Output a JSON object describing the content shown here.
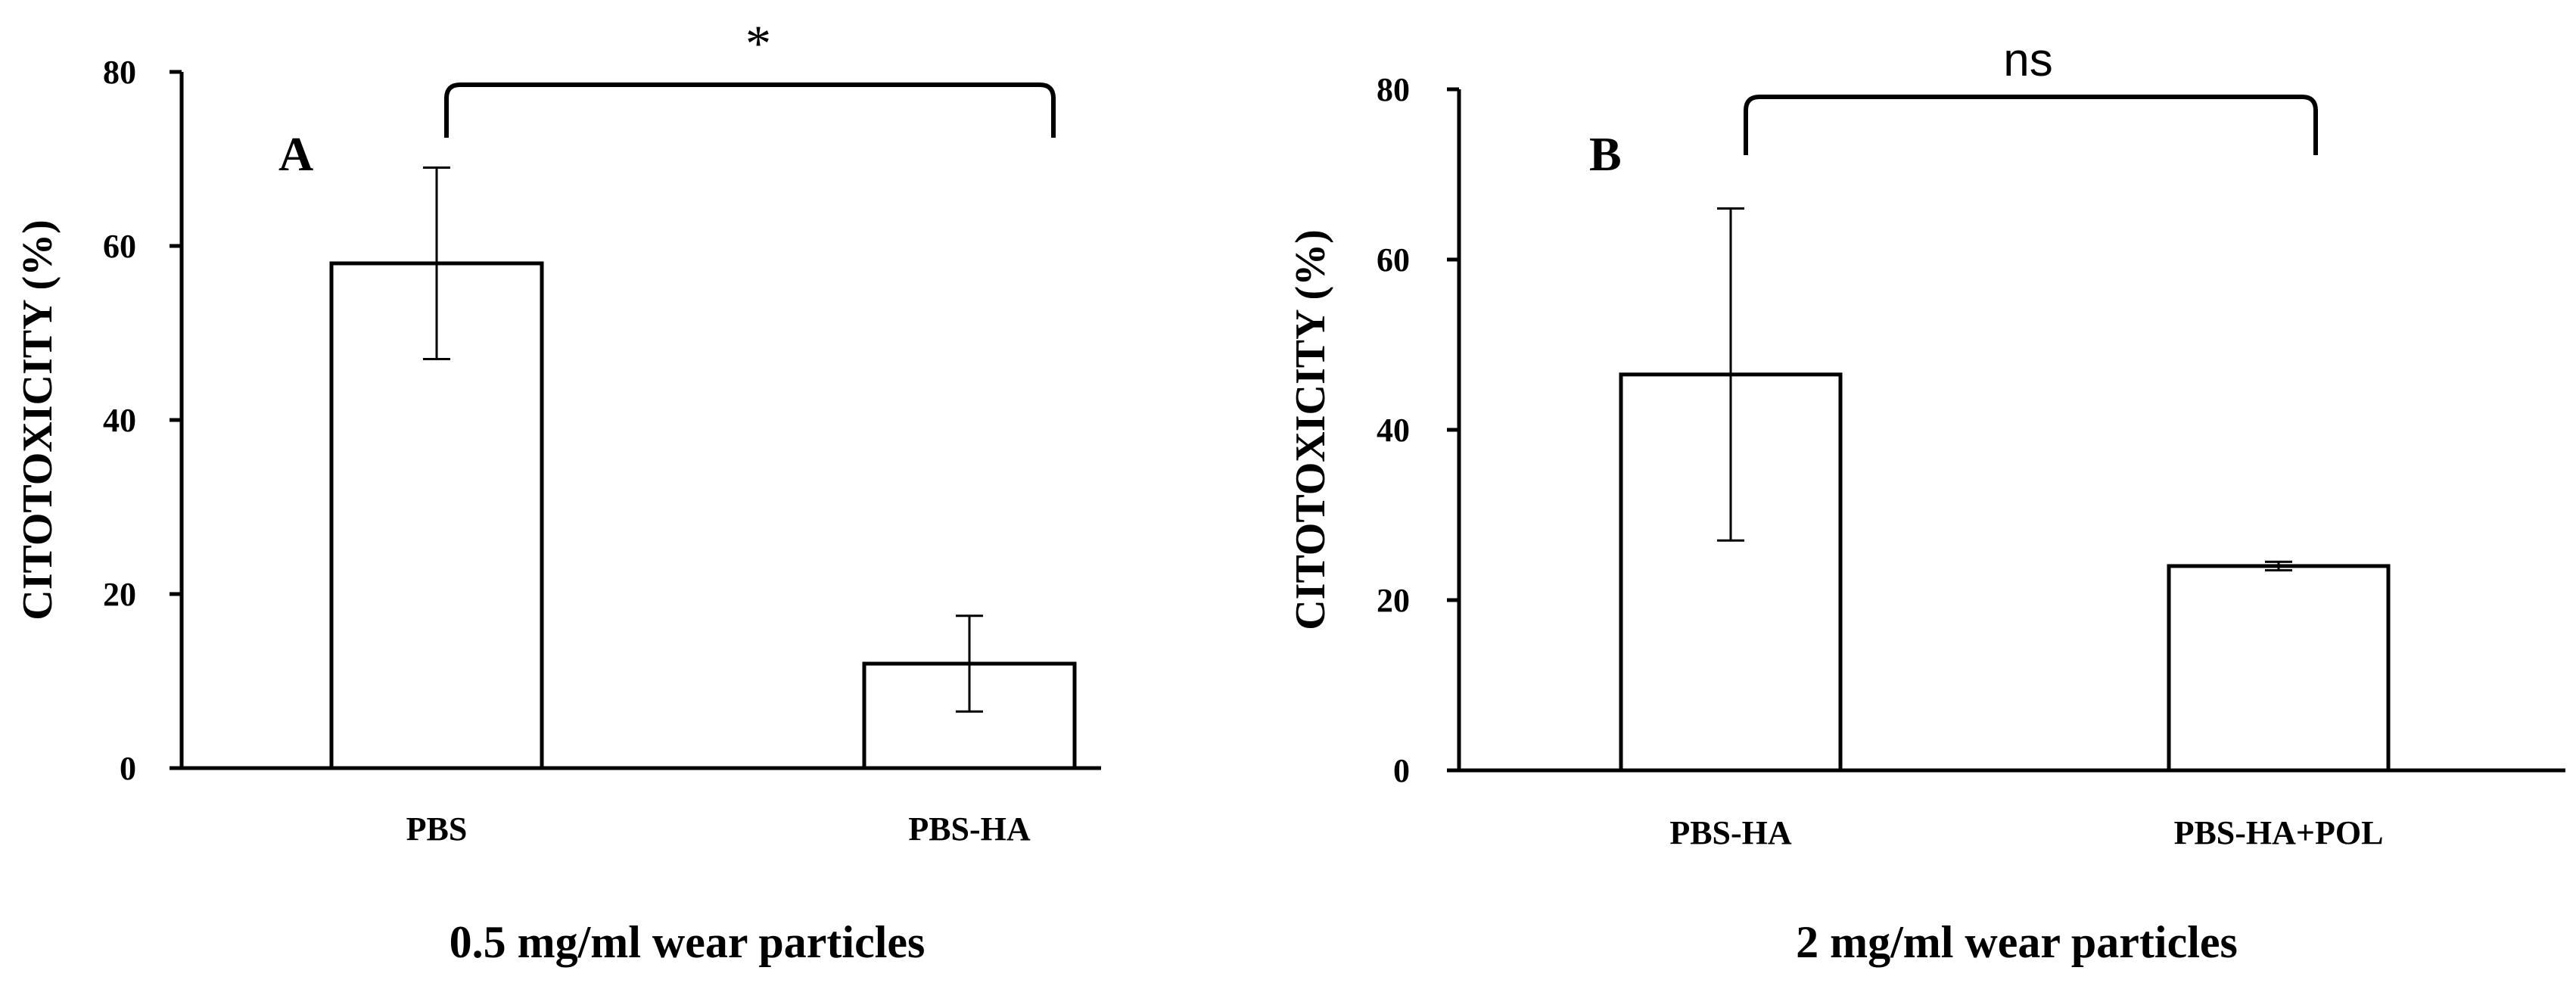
{
  "chart_data": [
    {
      "type": "bar",
      "panel_label": "A",
      "categories": [
        "PBS",
        "PBS-HA"
      ],
      "values": [
        58,
        12
      ],
      "error": [
        11,
        5.5
      ],
      "ylim": [
        0,
        80
      ],
      "yticks": [
        0,
        20,
        40,
        60,
        80
      ],
      "ylabel": "CITOTOXICITY (%)",
      "xlabel": "0.5 mg/ml wear particles",
      "significance": {
        "between": [
          0,
          1
        ],
        "label": "*"
      }
    },
    {
      "type": "bar",
      "panel_label": "B",
      "categories": [
        "PBS-HA",
        "PBS-HA+POL"
      ],
      "values": [
        46.5,
        24
      ],
      "error": [
        19.5,
        0.5
      ],
      "ylim": [
        0,
        80
      ],
      "yticks": [
        0,
        20,
        40,
        60,
        80
      ],
      "ylabel": "CITOTOXICITY (%)",
      "xlabel": "2 mg/ml wear particles",
      "significance": {
        "between": [
          0,
          1
        ],
        "label": "ns"
      }
    }
  ],
  "colors": {
    "bar_fill": "#ffffff",
    "stroke": "#000000"
  }
}
